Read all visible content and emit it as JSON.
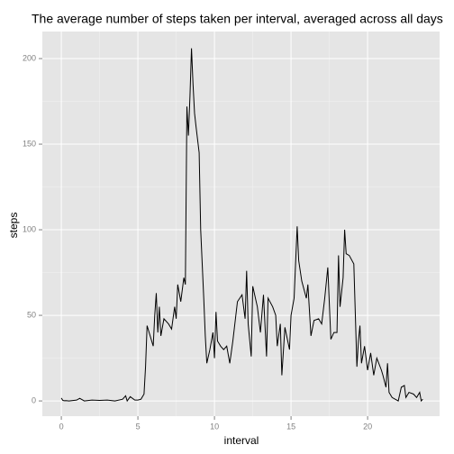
{
  "chart_data": {
    "type": "line",
    "title": "The average number of steps taken per interval, averaged across all days",
    "x_label": "interval",
    "y_label": "steps",
    "x": [
      0,
      0.1,
      0.2,
      0.3,
      0.5,
      1,
      1.2,
      1.5,
      2,
      2.5,
      3,
      3.5,
      4,
      4.2,
      4.3,
      4.5,
      4.8,
      5,
      5.2,
      5.4,
      5.5,
      5.6,
      5.8,
      6,
      6.1,
      6.2,
      6.3,
      6.4,
      6.5,
      6.7,
      7,
      7.2,
      7.4,
      7.5,
      7.6,
      7.8,
      8,
      8.1,
      8.2,
      8.3,
      8.4,
      8.5,
      8.6,
      8.7,
      8.8,
      9,
      9.1,
      9.3,
      9.4,
      9.5,
      9.7,
      9.9,
      10,
      10.1,
      10.2,
      10.4,
      10.6,
      10.8,
      11,
      11.2,
      11.5,
      11.8,
      12,
      12.1,
      12.2,
      12.4,
      12.5,
      12.8,
      13,
      13.2,
      13.4,
      13.5,
      13.8,
      14,
      14.1,
      14.3,
      14.4,
      14.6,
      14.9,
      15,
      15.2,
      15.4,
      15.5,
      15.7,
      16,
      16.1,
      16.3,
      16.5,
      16.8,
      17,
      17.2,
      17.4,
      17.6,
      17.8,
      18,
      18.1,
      18.2,
      18.4,
      18.5,
      18.6,
      18.8,
      19.1,
      19.3,
      19.4,
      19.5,
      19.6,
      19.8,
      20,
      20.2,
      20.4,
      20.6,
      20.9,
      21,
      21.2,
      21.3,
      21.4,
      21.6,
      22,
      22.2,
      22.4,
      22.5,
      22.7,
      23,
      23.2,
      23.4,
      23.5,
      23.6
    ],
    "series": [
      {
        "name": "steps",
        "color": "#000000",
        "values": [
          1.7,
          0.3,
          0.1,
          0.2,
          0,
          0.5,
          1.5,
          0,
          0.5,
          0.3,
          0.5,
          0,
          1,
          3,
          0,
          2.5,
          0.5,
          0.5,
          1,
          4,
          20,
          44,
          38,
          32,
          50,
          63,
          40,
          55,
          38,
          48,
          45,
          42,
          55,
          48,
          68,
          58,
          72,
          68,
          172,
          155,
          178,
          206,
          185,
          168,
          160,
          145,
          100,
          60,
          38,
          22,
          30,
          40,
          25,
          52,
          35,
          32,
          30,
          32,
          22,
          35,
          58,
          62,
          48,
          76,
          45,
          26,
          67,
          55,
          40,
          62,
          26,
          60,
          55,
          50,
          32,
          45,
          15,
          43,
          30,
          50,
          60,
          102,
          82,
          70,
          60,
          68,
          38,
          47,
          48,
          45,
          60,
          78,
          36,
          40,
          40,
          85,
          55,
          72,
          100,
          86,
          85,
          80,
          20,
          35,
          44,
          22,
          32,
          18,
          28,
          15,
          25,
          18,
          15,
          8,
          22,
          5,
          2,
          0,
          8,
          9,
          2,
          5,
          4,
          2,
          5,
          0,
          1
        ]
      }
    ],
    "xlim": [
      -1.24,
      24.7
    ],
    "ylim": [
      -8.9,
      215.8
    ],
    "xticks": [
      0,
      5,
      10,
      15,
      20
    ],
    "yticks": [
      0,
      50,
      100,
      150,
      200
    ],
    "grid": true
  }
}
